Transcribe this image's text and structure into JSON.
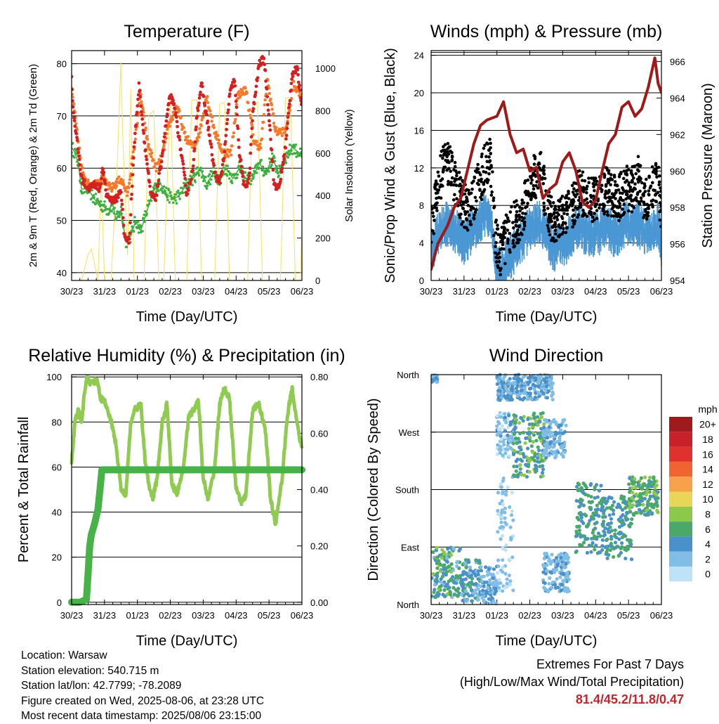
{
  "colors": {
    "temp_2m": "#d42020",
    "temp_9m": "#f47a2a",
    "dewpoint": "#3fb040",
    "solar": "#f9e26b",
    "sonic": "#4a97d4",
    "gust": "#000000",
    "pressure": "#a01818",
    "rh": "#8fcb50",
    "precip": "#47b247"
  },
  "time_ticks": [
    "30/23",
    "31/23",
    "01/23",
    "02/23",
    "03/23",
    "04/23",
    "05/23",
    "06/23"
  ],
  "chart_data": [
    {
      "id": "temperature",
      "type": "line",
      "title": "Temperature (F)",
      "xlabel": "Time (Day/UTC)",
      "ylabel": "2m & 9m T (Red, Orange) & 2m Td (Green)",
      "y2label": "Solar Insolation (Yellow)",
      "x_unit": "days since 30/23",
      "xlim": [
        0,
        7
      ],
      "ylim": [
        38.5,
        82.5
      ],
      "y_ticks": [
        40,
        50,
        60,
        70,
        80
      ],
      "y2lim": [
        0,
        1083
      ],
      "y2_ticks": [
        0,
        200,
        400,
        600,
        800,
        1000
      ],
      "grid": true,
      "series": [
        {
          "name": "2m T",
          "axis": "left",
          "color": "#d42020",
          "x": [
            0,
            0.05,
            0.15,
            0.3,
            0.5,
            0.7,
            0.85,
            0.95,
            1.05,
            1.2,
            1.35,
            1.5,
            1.6,
            1.75,
            1.9,
            2.05,
            2.2,
            2.4,
            2.55,
            2.7,
            2.9,
            3.0,
            3.15,
            3.35,
            3.5,
            3.7,
            3.8,
            3.95,
            4.15,
            4.35,
            4.5,
            4.65,
            4.8,
            4.95,
            5.1,
            5.25,
            5.4,
            5.5,
            5.7,
            5.85,
            6.0,
            6.15,
            6.3,
            6.5,
            6.7,
            6.85,
            7.0
          ],
          "y": [
            77,
            71,
            66,
            58,
            56,
            57,
            56,
            60,
            55,
            54,
            54,
            56,
            47,
            46,
            64,
            76,
            66,
            55,
            54,
            60,
            70,
            74,
            71,
            62,
            55,
            60,
            70,
            76,
            68,
            59,
            57,
            63,
            74,
            77,
            63,
            56,
            58,
            70,
            80,
            81,
            70,
            57,
            56,
            64,
            78,
            79,
            72
          ]
        },
        {
          "name": "9m T",
          "axis": "left",
          "color": "#f47a2a",
          "x": [
            0,
            0.3,
            0.5,
            0.7,
            0.9,
            1.2,
            1.5,
            1.7,
            1.9,
            2.1,
            2.3,
            2.55,
            2.75,
            2.95,
            3.2,
            3.45,
            3.7,
            3.9,
            4.1,
            4.35,
            4.6,
            4.85,
            5.05,
            5.3,
            5.55,
            5.75,
            5.95,
            6.2,
            6.5,
            6.75,
            7.0
          ],
          "y": [
            75,
            60,
            57,
            57,
            58,
            56,
            58,
            55,
            64,
            74,
            65,
            60,
            62,
            68,
            72,
            66,
            64,
            67,
            74,
            67,
            63,
            63,
            74,
            75,
            65,
            64,
            77,
            67,
            67,
            76,
            74
          ]
        },
        {
          "name": "2m Td",
          "axis": "left",
          "color": "#3fb040",
          "x": [
            0,
            0.1,
            0.2,
            0.3,
            0.5,
            0.7,
            0.9,
            1.1,
            1.25,
            1.35,
            1.5,
            1.65,
            1.8,
            1.95,
            2.1,
            2.3,
            2.5,
            2.7,
            2.9,
            3.1,
            3.3,
            3.5,
            3.7,
            3.9,
            4.1,
            4.3,
            4.5,
            4.7,
            4.9,
            5.1,
            5.3,
            5.5,
            5.7,
            5.9,
            6.1,
            6.3,
            6.5,
            6.7,
            6.9,
            7.0
          ],
          "y": [
            64,
            63,
            61,
            56,
            56,
            54,
            53,
            52,
            53,
            50,
            52,
            46,
            47,
            50,
            48,
            52,
            56,
            57,
            55,
            54,
            55,
            57,
            58,
            60,
            57,
            59,
            58,
            60,
            58,
            60,
            58,
            58,
            61,
            59,
            62,
            59,
            62,
            64,
            63,
            62
          ]
        },
        {
          "name": "Solar",
          "axis": "right",
          "color": "#f9e26b",
          "x": [
            0,
            0.3,
            0.5,
            0.6,
            0.8,
            0.9,
            1.0,
            1.2,
            1.4,
            1.5,
            1.55,
            1.6,
            1.7,
            1.8,
            1.9,
            2.0,
            2.2,
            2.35,
            2.5,
            2.65,
            2.8,
            3.0,
            3.15,
            3.35,
            3.5,
            3.65,
            3.8,
            3.95,
            4.1,
            4.35,
            4.5,
            4.65,
            4.8,
            4.95,
            5.1,
            5.35,
            5.5,
            5.65,
            5.8,
            5.95,
            6.1,
            6.35,
            6.5,
            6.65,
            6.8,
            6.95,
            7.0
          ],
          "y": [
            0,
            0,
            120,
            150,
            0,
            500,
            0,
            0,
            600,
            1030,
            700,
            500,
            120,
            900,
            0,
            0,
            0,
            780,
            800,
            0,
            0,
            880,
            0,
            0,
            0,
            850,
            850,
            0,
            0,
            0,
            830,
            840,
            0,
            0,
            0,
            0,
            840,
            840,
            0,
            0,
            0,
            0,
            860,
            860,
            0,
            0,
            250
          ]
        }
      ]
    },
    {
      "id": "winds",
      "type": "scatter",
      "title": "Winds (mph) & Pressure (mb)",
      "xlabel": "Time (Day/UTC)",
      "ylabel": "Sonic/Prop Wind & Gust (Blue, Black)",
      "y2label": "Station Pressure (Maroon)",
      "xlim": [
        0,
        7
      ],
      "ylim": [
        0,
        24.5
      ],
      "y_ticks": [
        0,
        4,
        8,
        12,
        16,
        20,
        24
      ],
      "y2lim": [
        954,
        966.6
      ],
      "y2_ticks": [
        954,
        956,
        958,
        960,
        962,
        964,
        966
      ],
      "grid": true,
      "wind_level": {
        "x": [
          0,
          0.2,
          0.4,
          0.6,
          0.8,
          1.0,
          1.2,
          1.4,
          1.6,
          1.8,
          1.95,
          2.1,
          2.3,
          2.5,
          2.7,
          2.9,
          3.1,
          3.3,
          3.5,
          3.7,
          3.9,
          4.1,
          4.3,
          4.5,
          4.7,
          4.9,
          5.1,
          5.3,
          5.5,
          5.7,
          5.9,
          6.1,
          6.3,
          6.5,
          6.7,
          6.9,
          7.0
        ],
        "sonic": [
          3,
          5,
          6,
          6,
          5,
          4,
          5,
          6,
          7,
          7,
          2,
          1,
          2,
          3,
          4,
          5,
          6,
          6,
          5,
          3,
          4,
          4,
          5,
          6,
          5,
          5,
          5,
          6,
          5,
          5,
          6,
          6,
          6,
          5,
          5,
          6,
          4
        ],
        "gust": [
          5,
          9,
          12,
          11,
          9,
          7,
          7,
          9,
          11,
          12,
          4,
          2,
          4,
          5,
          6,
          8,
          10,
          11,
          8,
          5,
          6,
          6,
          7,
          9,
          8,
          8,
          8,
          9,
          8,
          8,
          9,
          9,
          10,
          8,
          9,
          10,
          6
        ],
        "sonic_spread": 2.5,
        "gust_spread": 5
      },
      "series": [
        {
          "name": "Pressure",
          "axis": "right",
          "color": "#a01818",
          "x": [
            0,
            0.2,
            0.5,
            0.7,
            0.9,
            1.1,
            1.3,
            1.5,
            1.7,
            2.0,
            2.2,
            2.4,
            2.6,
            2.8,
            3.0,
            3.2,
            3.4,
            3.6,
            3.8,
            4.0,
            4.2,
            4.4,
            4.6,
            4.8,
            5.0,
            5.2,
            5.4,
            5.6,
            5.8,
            6.0,
            6.2,
            6.4,
            6.6,
            6.8,
            6.9,
            7.0
          ],
          "y": [
            954.6,
            956,
            957,
            958,
            958.5,
            960,
            961.5,
            962.5,
            962.8,
            963,
            963.8,
            962,
            961,
            961.2,
            960,
            960.2,
            958.5,
            959,
            959.3,
            960.5,
            961,
            960,
            958.3,
            958,
            958.4,
            960,
            961.5,
            962,
            963.5,
            963.8,
            963,
            963.4,
            964.6,
            966.2,
            964.8,
            964.3
          ]
        }
      ]
    },
    {
      "id": "humidity",
      "type": "line",
      "title": "Relative Humidity (%) & Precipitation (in)",
      "xlabel": "Time (Day/UTC)",
      "ylabel": "Percent & Total Rainfall",
      "xlim": [
        0,
        7
      ],
      "ylim": [
        -1,
        101
      ],
      "y_ticks": [
        0,
        20,
        40,
        60,
        80,
        100
      ],
      "y2lim": [
        -0.008,
        0.808
      ],
      "y2_ticks": [
        "0.00",
        "0.20",
        "0.40",
        "0.60",
        "0.80"
      ],
      "grid": true,
      "series": [
        {
          "name": "RH",
          "axis": "left",
          "color": "#8fcb50",
          "x": [
            0,
            0.1,
            0.2,
            0.3,
            0.45,
            0.6,
            0.75,
            0.9,
            1.05,
            1.2,
            1.35,
            1.5,
            1.65,
            1.8,
            1.95,
            2.1,
            2.25,
            2.45,
            2.6,
            2.75,
            2.9,
            3.05,
            3.2,
            3.4,
            3.55,
            3.7,
            3.85,
            4.0,
            4.15,
            4.35,
            4.5,
            4.65,
            4.8,
            5.0,
            5.15,
            5.3,
            5.5,
            5.7,
            5.9,
            6.05,
            6.2,
            6.4,
            6.55,
            6.7,
            6.85,
            7.0
          ],
          "y": [
            62,
            80,
            85,
            80,
            100,
            97,
            99,
            90,
            88,
            80,
            70,
            50,
            48,
            80,
            86,
            88,
            60,
            45,
            55,
            80,
            88,
            52,
            48,
            60,
            82,
            85,
            90,
            55,
            45,
            60,
            88,
            95,
            90,
            50,
            44,
            48,
            85,
            88,
            75,
            45,
            35,
            55,
            82,
            95,
            80,
            68
          ]
        },
        {
          "name": "Total Rainfall",
          "axis": "right",
          "color": "#47b247",
          "x": [
            0,
            0.25,
            0.45,
            0.5,
            0.55,
            0.6,
            0.7,
            0.8,
            0.88,
            0.92,
            1.0,
            7.0
          ],
          "y": [
            0,
            0,
            0.01,
            0.1,
            0.2,
            0.24,
            0.28,
            0.33,
            0.42,
            0.47,
            0.47,
            0.47
          ]
        }
      ]
    },
    {
      "id": "wind_direction",
      "type": "scatter",
      "title": "Wind Direction",
      "xlabel": "Time (Day/UTC)",
      "ylabel": "Direction (Colored By Speed)",
      "xlim": [
        0,
        7
      ],
      "ylim": [
        0,
        360
      ],
      "y_ticks": [
        "North",
        "East",
        "South",
        "West",
        "North"
      ],
      "grid": true,
      "legend": {
        "title": "mph",
        "placement": "right",
        "labels": [
          "20+",
          "18",
          "16",
          "14",
          "12",
          "10",
          "8",
          "6",
          "4",
          "2",
          "0"
        ],
        "colors": [
          "#9e1a1d",
          "#c9212a",
          "#e0322d",
          "#f06431",
          "#f7a14a",
          "#e9d558",
          "#8cc84b",
          "#4aa86a",
          "#4a90c9",
          "#82bde6",
          "#bfe3f6"
        ]
      },
      "clusters": [
        {
          "x": [
            0,
            0.9
          ],
          "dir": [
            10,
            90
          ],
          "spd": [
            2,
            8
          ]
        },
        {
          "x": [
            0.9,
            1.5
          ],
          "dir": [
            5,
            70
          ],
          "spd": [
            2,
            6
          ]
        },
        {
          "x": [
            1.5,
            2.0
          ],
          "dir": [
            0,
            60
          ],
          "spd": [
            1,
            5
          ]
        },
        {
          "x": [
            2.0,
            2.6
          ],
          "dir": [
            230,
            300
          ],
          "spd": [
            0,
            4
          ]
        },
        {
          "x": [
            2.0,
            2.5
          ],
          "dir": [
            20,
            200
          ],
          "spd": [
            0,
            3
          ]
        },
        {
          "x": [
            2.5,
            3.5
          ],
          "dir": [
            200,
            300
          ],
          "spd": [
            3,
            8
          ]
        },
        {
          "x": [
            3.4,
            4.1
          ],
          "dir": [
            230,
            290
          ],
          "spd": [
            1,
            4
          ]
        },
        {
          "x": [
            3.4,
            4.2
          ],
          "dir": [
            20,
            80
          ],
          "spd": [
            1,
            4
          ]
        },
        {
          "x": [
            4.4,
            5.2
          ],
          "dir": [
            80,
            190
          ],
          "spd": [
            3,
            7
          ]
        },
        {
          "x": [
            5.2,
            6.1
          ],
          "dir": [
            70,
            170
          ],
          "spd": [
            3,
            7
          ]
        },
        {
          "x": [
            6.0,
            6.9
          ],
          "dir": [
            140,
            200
          ],
          "spd": [
            4,
            8
          ]
        },
        {
          "x": [
            0,
            0.2
          ],
          "dir": [
            348,
            360
          ],
          "spd": [
            1,
            4
          ]
        },
        {
          "x": [
            2.0,
            3.7
          ],
          "dir": [
            320,
            360
          ],
          "spd": [
            1,
            5
          ]
        }
      ]
    }
  ],
  "info": {
    "location": "Location: Warsaw",
    "elevation": "Station elevation: 540.715 m",
    "latlon": "Station lat/lon: 42.7799; -78.2089",
    "created": "Figure created on Wed, 2025-08-06, at 23:28 UTC",
    "timestamp": "Most recent data timestamp: 2025/08/06 23:15:00"
  },
  "extremes": {
    "line1": "Extremes For Past 7 Days",
    "line2": "(High/Low/Max Wind/Total Precipitation)",
    "values": "81.4/45.2/11.8/0.47"
  }
}
